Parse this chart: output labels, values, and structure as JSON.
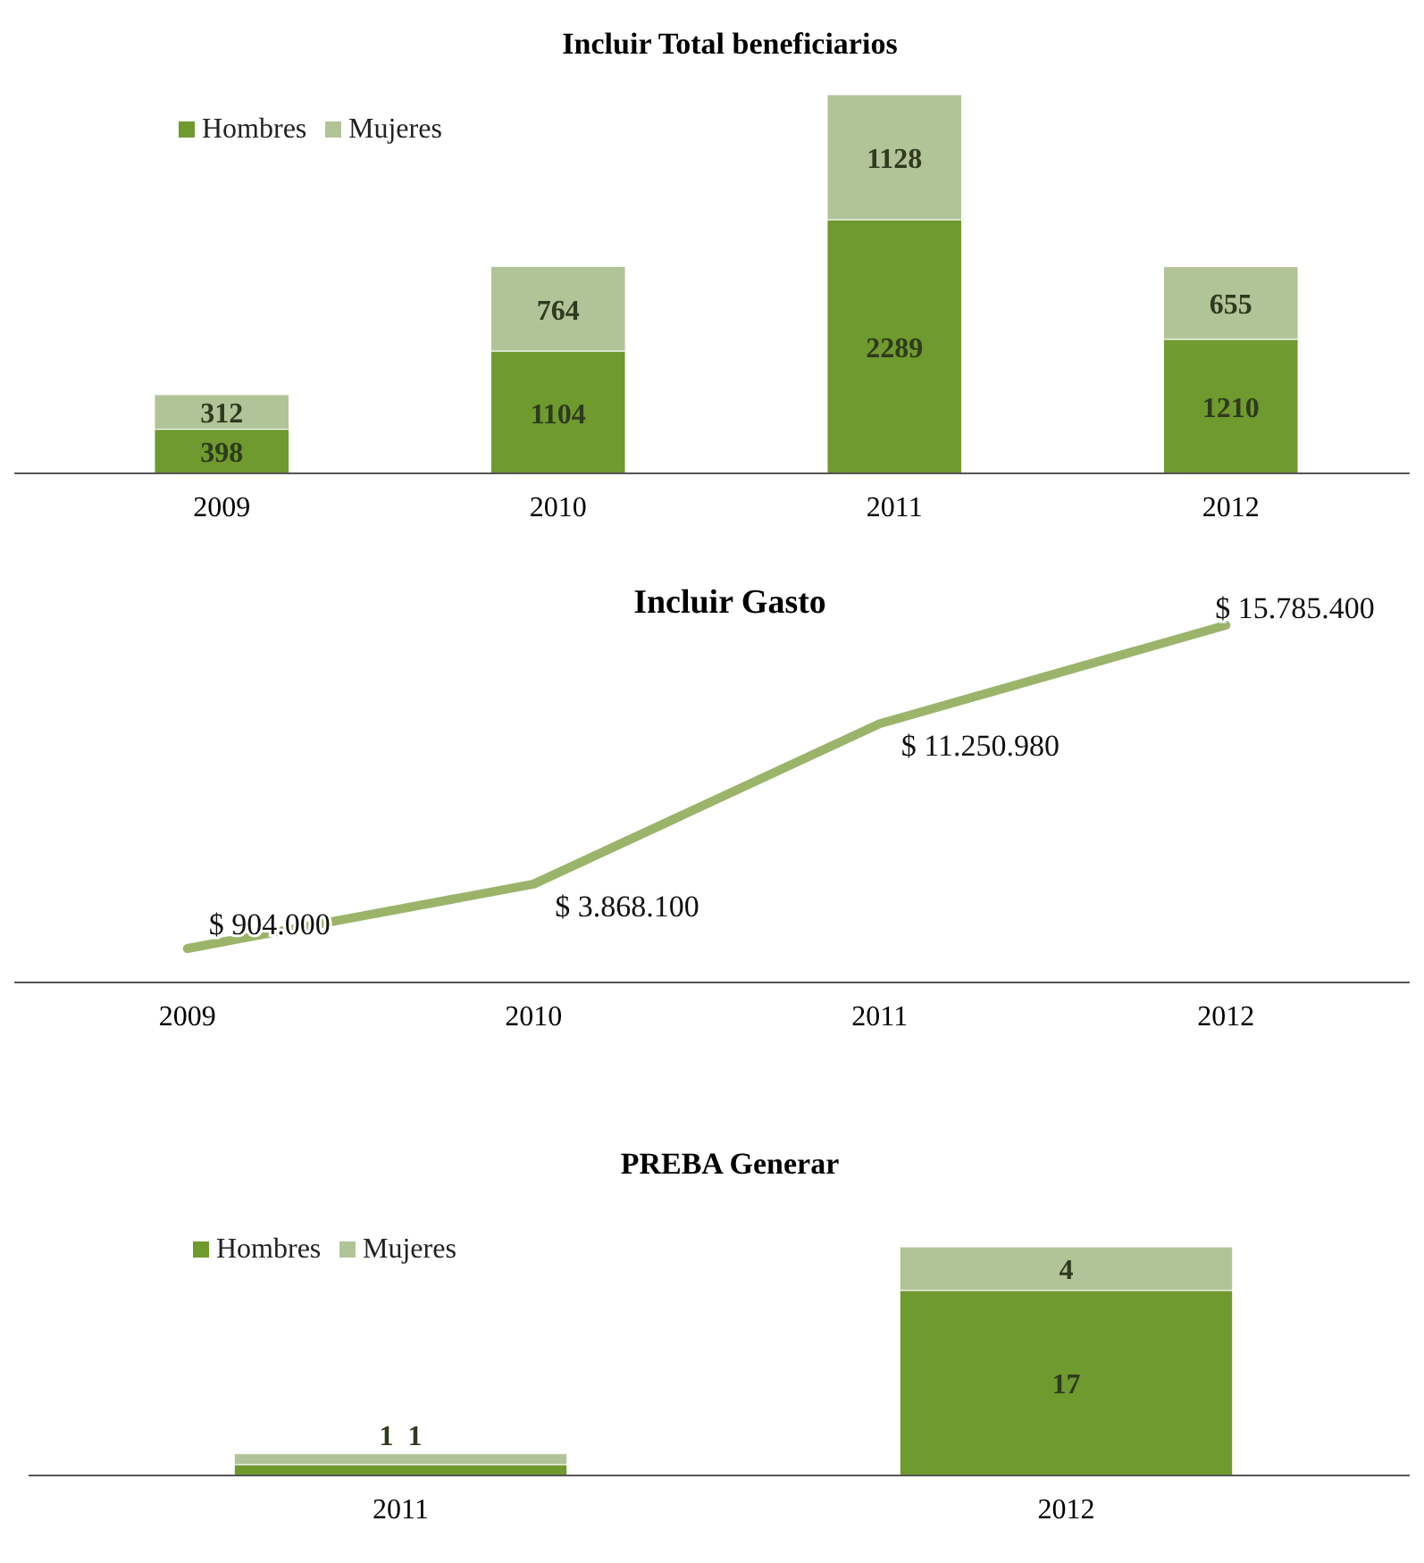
{
  "chart_data": [
    {
      "type": "bar",
      "title": "Incluir Total beneficiarios",
      "categories": [
        "2009",
        "2010",
        "2011",
        "2012"
      ],
      "stacked": true,
      "data_labels": true,
      "legend": "top left",
      "series": [
        {
          "name": "Hombres",
          "color": "#6f9a2e",
          "values": [
            398,
            1104,
            2289,
            1210
          ]
        },
        {
          "name": "Mujeres",
          "color": "#b1c498",
          "values": [
            312,
            764,
            1128,
            655
          ]
        }
      ]
    },
    {
      "type": "line",
      "title": "Incluir Gasto",
      "categories": [
        "2009",
        "2010",
        "2011",
        "2012"
      ],
      "series": [
        {
          "color": "#9bb46a",
          "values": [
            904000,
            3868100,
            11250980,
            15785400
          ],
          "value_labels": [
            "$ 904.000",
            "$ 3.868.100",
            "$ 11.250.980",
            "$ 15.785.400"
          ]
        }
      ]
    },
    {
      "type": "bar",
      "title": "PREBA Generar",
      "categories": [
        "2011",
        "2012"
      ],
      "stacked": true,
      "data_labels": true,
      "legend": "top left",
      "series": [
        {
          "name": "Hombres",
          "color": "#6f9a2e",
          "values": [
            1,
            17
          ]
        },
        {
          "name": "Mujeres",
          "color": "#b1c498",
          "values": [
            1,
            4
          ]
        }
      ]
    }
  ]
}
